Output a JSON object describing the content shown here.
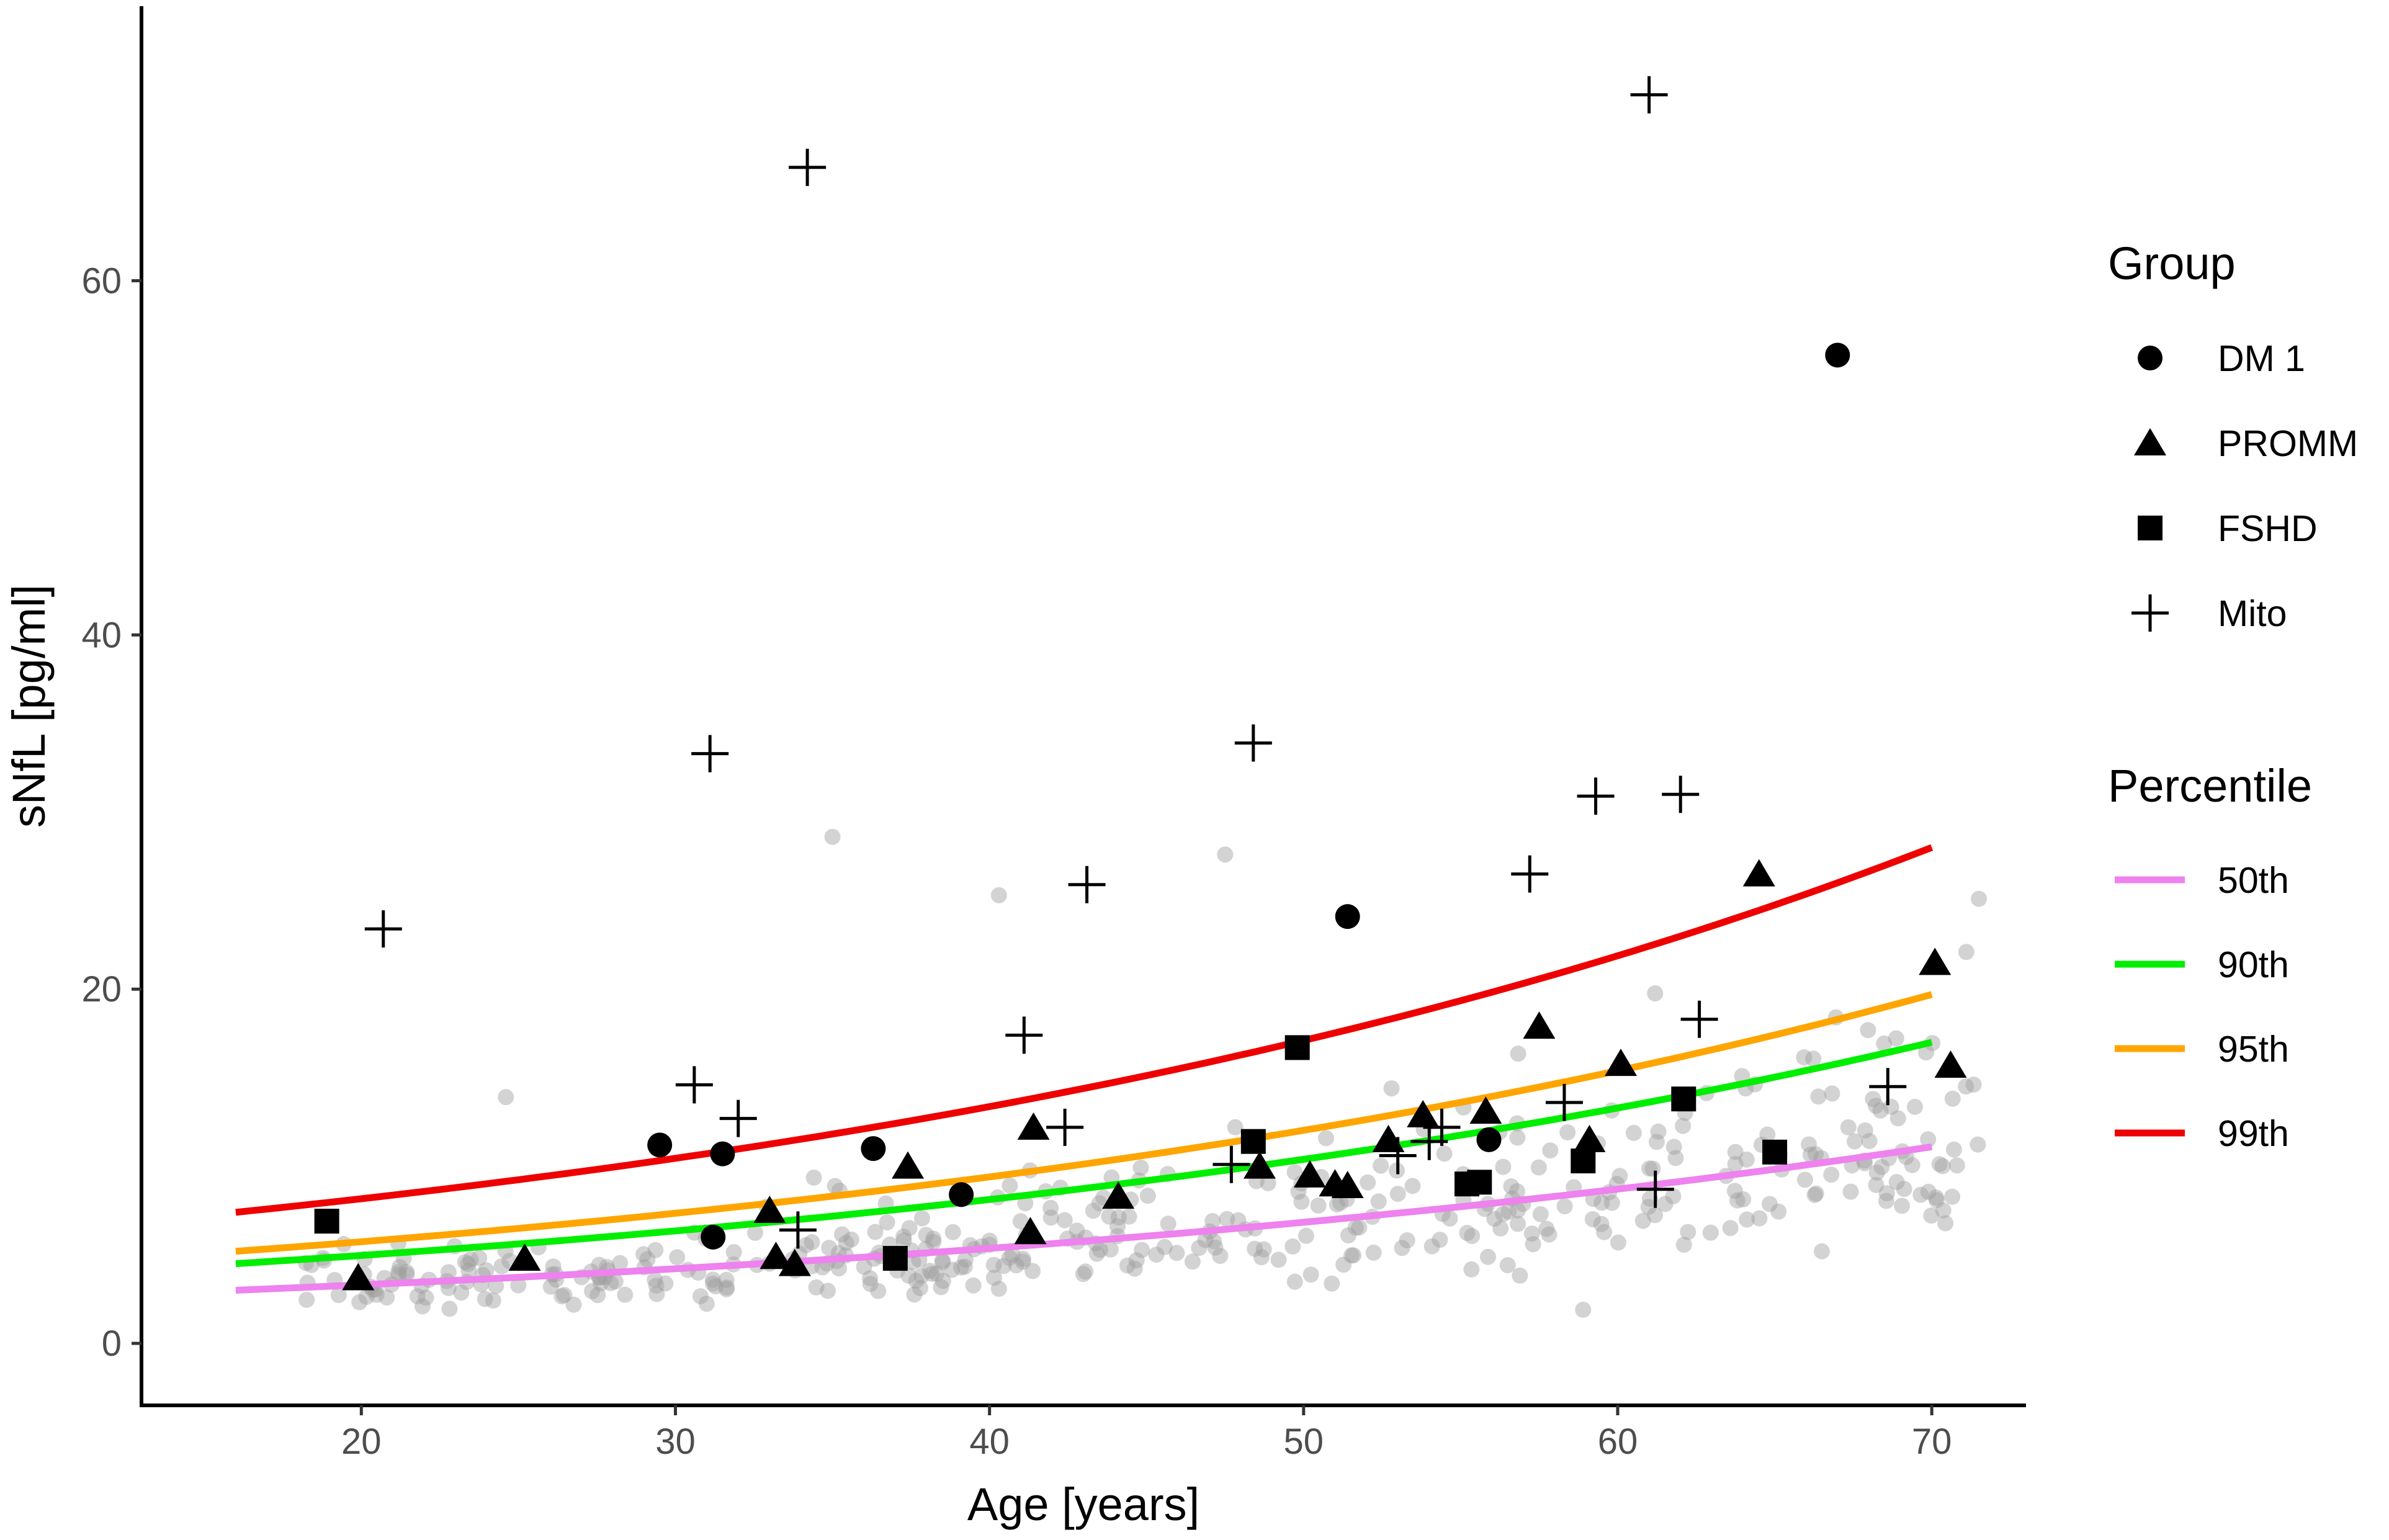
{
  "chart_data": {
    "type": "scatter",
    "xlabel": "Age [years]",
    "ylabel": "sNfL [pg/ml]",
    "xlim": [
      13.0,
      73.0
    ],
    "ylim": [
      -3.5,
      75.5
    ],
    "x_ticks": [
      20,
      30,
      40,
      50,
      60,
      70
    ],
    "y_ticks": [
      0,
      20,
      40,
      60
    ],
    "grid": false,
    "legend_position": "right",
    "colors": {
      "background_points": "#9e9e9e",
      "markers": "#000000",
      "p50": "#ee82ee",
      "p90": "#00ee00",
      "p95": "#ffa500",
      "p99": "#ee0000"
    },
    "group_legend": {
      "title": "Group",
      "items": [
        {
          "label": "DM 1",
          "shape": "circle"
        },
        {
          "label": "PROMM",
          "shape": "triangle"
        },
        {
          "label": "FSHD",
          "shape": "square"
        },
        {
          "label": "Mito",
          "shape": "cross"
        }
      ]
    },
    "percentile_legend": {
      "title": "Percentile",
      "items": [
        {
          "label": "50th",
          "color": "#ee82ee"
        },
        {
          "label": "90th",
          "color": "#00ee00"
        },
        {
          "label": "95th",
          "color": "#ffa500"
        },
        {
          "label": "99th",
          "color": "#ee0000"
        }
      ]
    },
    "percentile_curves": [
      {
        "name": "50th",
        "color": "#ee82ee",
        "x": [
          16,
          30,
          40,
          50,
          60,
          70
        ],
        "y": [
          3.0,
          4.4,
          5.6,
          7.1,
          8.9,
          11.1
        ]
      },
      {
        "name": "90th",
        "color": "#00ee00",
        "x": [
          16,
          30,
          40,
          50,
          60,
          70
        ],
        "y": [
          4.5,
          6.6,
          8.4,
          10.8,
          13.6,
          17.0
        ]
      },
      {
        "name": "95th",
        "color": "#ffa500",
        "x": [
          16,
          30,
          40,
          50,
          60,
          70
        ],
        "y": [
          5.2,
          7.6,
          9.7,
          12.3,
          15.6,
          19.7
        ]
      },
      {
        "name": "99th",
        "color": "#ee0000",
        "x": [
          16,
          30,
          40,
          50,
          60,
          70
        ],
        "y": [
          7.4,
          11.0,
          14.2,
          18.0,
          22.6,
          28.0
        ]
      }
    ],
    "series": [
      {
        "name": "DM 1",
        "shape": "circle",
        "points": [
          [
            29.5,
            11.2
          ],
          [
            31.2,
            6.0
          ],
          [
            31.5,
            10.7
          ],
          [
            36.3,
            11.0
          ],
          [
            39.1,
            8.4
          ],
          [
            51.4,
            24.1
          ],
          [
            55.9,
            11.5
          ],
          [
            67.0,
            55.8
          ]
        ]
      },
      {
        "name": "PROMM",
        "shape": "triangle",
        "points": [
          [
            19.9,
            3.7
          ],
          [
            25.2,
            4.8
          ],
          [
            33.0,
            7.5
          ],
          [
            33.2,
            4.9
          ],
          [
            33.8,
            4.5
          ],
          [
            37.4,
            10.0
          ],
          [
            41.4,
            12.2
          ],
          [
            41.3,
            6.3
          ],
          [
            44.1,
            8.3
          ],
          [
            48.6,
            10.0
          ],
          [
            50.2,
            9.5
          ],
          [
            51.0,
            9.0
          ],
          [
            51.4,
            8.9
          ],
          [
            52.7,
            11.5
          ],
          [
            53.8,
            12.9
          ],
          [
            55.8,
            13.1
          ],
          [
            57.5,
            17.9
          ],
          [
            59.1,
            11.5
          ],
          [
            60.1,
            15.8
          ],
          [
            64.5,
            26.5
          ],
          [
            70.1,
            21.5
          ],
          [
            70.6,
            15.7
          ]
        ]
      },
      {
        "name": "FSHD",
        "shape": "square",
        "points": [
          [
            18.9,
            6.9
          ],
          [
            37.0,
            4.8
          ],
          [
            48.4,
            11.4
          ],
          [
            49.8,
            16.7
          ],
          [
            55.2,
            9.0
          ],
          [
            55.6,
            9.1
          ],
          [
            58.9,
            10.3
          ],
          [
            62.1,
            13.8
          ],
          [
            65.0,
            10.8
          ]
        ]
      },
      {
        "name": "Mito",
        "shape": "cross",
        "points": [
          [
            20.7,
            23.4
          ],
          [
            30.6,
            14.6
          ],
          [
            31.1,
            33.3
          ],
          [
            32.0,
            12.7
          ],
          [
            33.9,
            6.4
          ],
          [
            34.2,
            66.4
          ],
          [
            41.1,
            17.4
          ],
          [
            42.4,
            12.2
          ],
          [
            43.1,
            25.9
          ],
          [
            47.7,
            10.1
          ],
          [
            48.4,
            33.9
          ],
          [
            53.0,
            10.6
          ],
          [
            54.0,
            11.4
          ],
          [
            54.4,
            12.2
          ],
          [
            57.2,
            26.5
          ],
          [
            58.3,
            13.6
          ],
          [
            59.3,
            30.9
          ],
          [
            61.0,
            70.5
          ],
          [
            61.2,
            8.7
          ],
          [
            62.0,
            31.0
          ],
          [
            62.6,
            18.3
          ],
          [
            68.6,
            14.5
          ]
        ]
      }
    ]
  }
}
